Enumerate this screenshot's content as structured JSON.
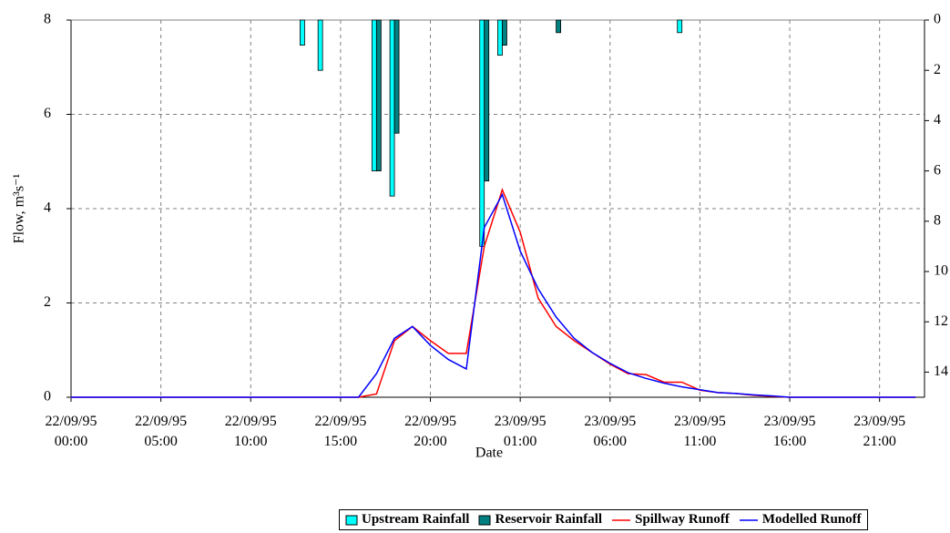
{
  "chart_data": {
    "type": "combo",
    "x_label": "Date",
    "y_label": "Flow, m³s⁻¹",
    "x": [
      0,
      1,
      2,
      3,
      4,
      5,
      6,
      7,
      8,
      9,
      10,
      11,
      12,
      13,
      14,
      15,
      16,
      17,
      18,
      19,
      20,
      21,
      22,
      23,
      24,
      25,
      26,
      27,
      28,
      29,
      30,
      31,
      32,
      33,
      34,
      35,
      36,
      37,
      38,
      39,
      40,
      41,
      42,
      43,
      44,
      45,
      46,
      47
    ],
    "xlim": [
      0,
      47.5
    ],
    "xticks": [
      {
        "value": 0,
        "label": "22/09/95 00:00"
      },
      {
        "value": 5,
        "label": "22/09/95 05:00"
      },
      {
        "value": 10,
        "label": "22/09/95 10:00"
      },
      {
        "value": 15,
        "label": "22/09/95 15:00"
      },
      {
        "value": 20,
        "label": "22/09/95 20:00"
      },
      {
        "value": 25,
        "label": "23/09/95 01:00"
      },
      {
        "value": 30,
        "label": "23/09/95 06:00"
      },
      {
        "value": 35,
        "label": "23/09/95 11:00"
      },
      {
        "value": 40,
        "label": "23/09/95 16:00"
      },
      {
        "value": 45,
        "label": "23/09/95 21:00"
      }
    ],
    "ylim": [
      0,
      8
    ],
    "yticks": [
      0,
      2,
      4,
      6,
      8
    ],
    "y2lim": [
      0,
      15
    ],
    "y2ticks": [
      0,
      2,
      4,
      6,
      8,
      10,
      12,
      14
    ],
    "y2_inverted": true,
    "grid": true,
    "series": [
      {
        "name": "Upstream Rainfall",
        "type": "bar",
        "axis": "y2",
        "color": "#00ffff",
        "values": [
          0,
          0,
          0,
          0,
          0,
          0,
          0,
          0,
          0,
          0,
          0,
          0,
          0,
          1,
          2,
          0,
          0,
          6,
          7,
          0,
          0,
          0,
          0,
          9,
          1.4,
          0,
          0,
          0,
          0,
          0,
          0,
          0,
          0,
          0,
          0.5,
          0,
          0,
          0,
          0,
          0,
          0,
          0,
          0,
          0,
          0,
          0,
          0,
          0
        ]
      },
      {
        "name": "Reservoir Rainfall",
        "type": "bar",
        "axis": "y2",
        "color": "#008080",
        "values": [
          0,
          0,
          0,
          0,
          0,
          0,
          0,
          0,
          0,
          0,
          0,
          0,
          0,
          0,
          0,
          0,
          0,
          6,
          4.5,
          0,
          0,
          0,
          0,
          6.4,
          1,
          0,
          0,
          0.5,
          0,
          0,
          0,
          0,
          0,
          0,
          0,
          0,
          0,
          0,
          0,
          0,
          0,
          0,
          0,
          0,
          0,
          0,
          0,
          0
        ]
      },
      {
        "name": "Spillway Runoff",
        "type": "line",
        "color": "#ff0000",
        "values": [
          0,
          0,
          0,
          0,
          0,
          0,
          0,
          0,
          0,
          0,
          0,
          0,
          0,
          0,
          0,
          0,
          0,
          0.07,
          1.2,
          1.5,
          1.2,
          0.93,
          0.93,
          3.2,
          4.4,
          3.5,
          2.1,
          1.5,
          1.2,
          0.95,
          0.7,
          0.5,
          0.48,
          0.32,
          0.32,
          0.15,
          0.1,
          0.08,
          0.04,
          0.02,
          0,
          0,
          0,
          0,
          0,
          0,
          0,
          0
        ]
      },
      {
        "name": "Modelled Runoff",
        "type": "line",
        "color": "#0000ff",
        "values": [
          0,
          0,
          0,
          0,
          0,
          0,
          0,
          0,
          0,
          0,
          0,
          0,
          0,
          0,
          0,
          0,
          0,
          0.5,
          1.25,
          1.5,
          1.1,
          0.8,
          0.6,
          3.6,
          4.3,
          3.1,
          2.3,
          1.7,
          1.25,
          0.95,
          0.72,
          0.52,
          0.4,
          0.3,
          0.22,
          0.16,
          0.1,
          0.08,
          0.05,
          0.03,
          0,
          0,
          0,
          0,
          0,
          0,
          0,
          0
        ]
      }
    ]
  }
}
